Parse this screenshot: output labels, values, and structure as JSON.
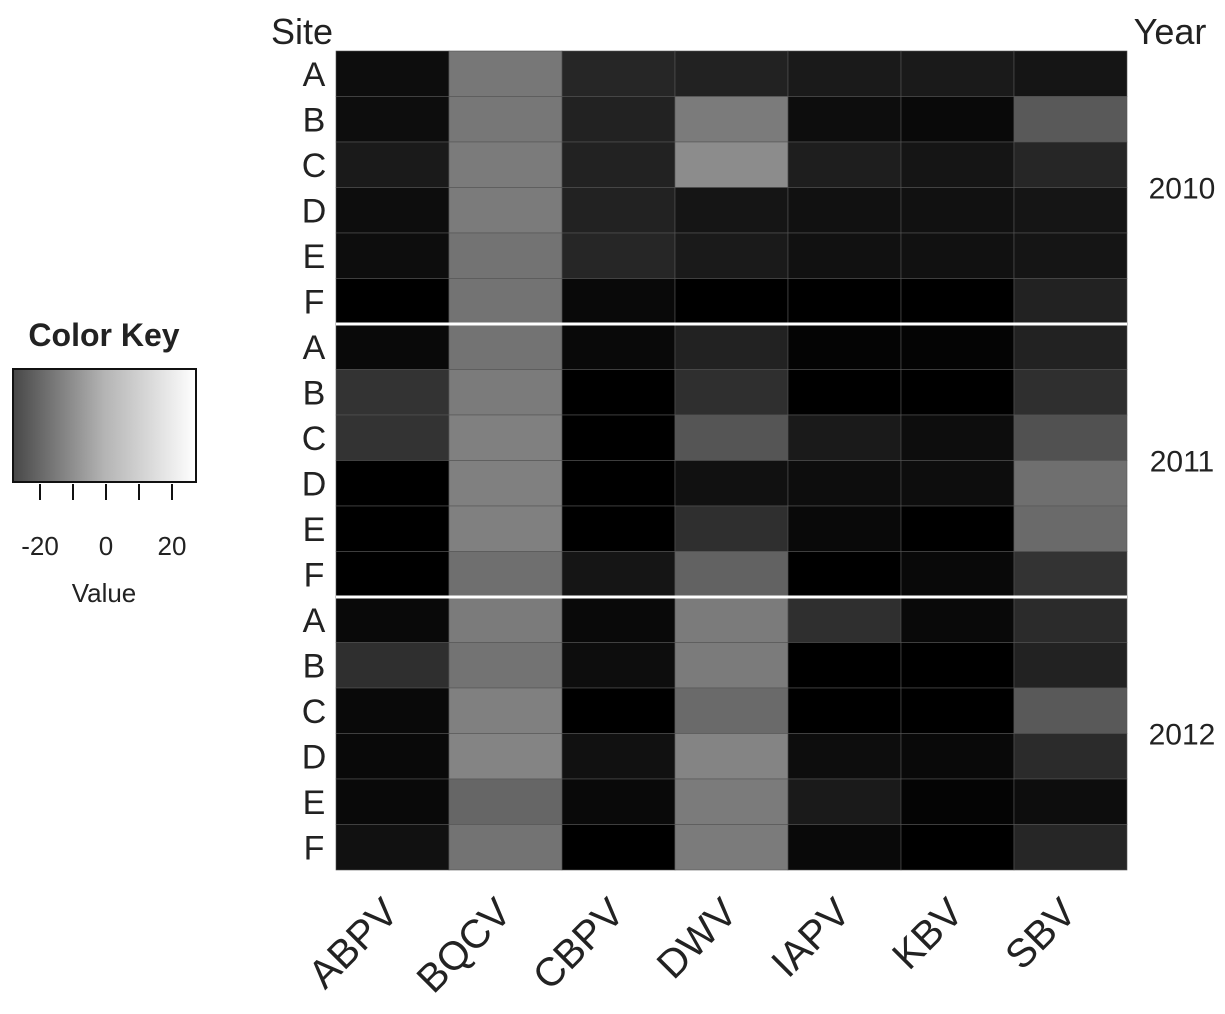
{
  "chart_data": {
    "type": "heatmap",
    "title": "",
    "xlabel": "",
    "ylabel": "Site",
    "right_label": "Year",
    "columns": [
      "ABPV",
      "BQCV",
      "CBPV",
      "DWV",
      "IAPV",
      "KBV",
      "SBV"
    ],
    "years": [
      "2010",
      "2011",
      "2012"
    ],
    "sites": [
      "A",
      "B",
      "C",
      "D",
      "E",
      "F"
    ],
    "value_range": [
      -30,
      30
    ],
    "color_scale": {
      "low": "#000000",
      "high": "#ffffff"
    },
    "rows": [
      {
        "year": "2010",
        "site": "A",
        "values": [
          -27,
          -2,
          -21,
          -22,
          -24,
          -24,
          -25
        ]
      },
      {
        "year": "2010",
        "site": "B",
        "values": [
          -27,
          -2,
          -22,
          -1,
          -27,
          -28,
          -9
        ]
      },
      {
        "year": "2010",
        "site": "C",
        "values": [
          -24,
          -1,
          -22,
          3,
          -23,
          -25,
          -21
        ]
      },
      {
        "year": "2010",
        "site": "D",
        "values": [
          -27,
          -1,
          -22,
          -25,
          -26,
          -26,
          -25
        ]
      },
      {
        "year": "2010",
        "site": "E",
        "values": [
          -27,
          -3,
          -21,
          -24,
          -26,
          -26,
          -25
        ]
      },
      {
        "year": "2010",
        "site": "F",
        "values": [
          -30,
          -3,
          -28,
          -30,
          -30,
          -30,
          -22
        ]
      },
      {
        "year": "2011",
        "site": "A",
        "values": [
          -28,
          -3,
          -28,
          -22,
          -29,
          -29,
          -22
        ]
      },
      {
        "year": "2011",
        "site": "B",
        "values": [
          -18,
          -1,
          -30,
          -19,
          -30,
          -30,
          -19
        ]
      },
      {
        "year": "2011",
        "site": "C",
        "values": [
          -18,
          0,
          -30,
          -10,
          -24,
          -27,
          -11
        ]
      },
      {
        "year": "2011",
        "site": "D",
        "values": [
          -30,
          0,
          -30,
          -26,
          -27,
          -27,
          -4
        ]
      },
      {
        "year": "2011",
        "site": "E",
        "values": [
          -30,
          0,
          -30,
          -19,
          -28,
          -30,
          -5
        ]
      },
      {
        "year": "2011",
        "site": "F",
        "values": [
          -30,
          -4,
          -25,
          -7,
          -30,
          -28,
          -18
        ]
      },
      {
        "year": "2012",
        "site": "A",
        "values": [
          -28,
          -1,
          -28,
          -1,
          -19,
          -28,
          -20
        ]
      },
      {
        "year": "2012",
        "site": "B",
        "values": [
          -19,
          -3,
          -27,
          -1,
          -30,
          -30,
          -22
        ]
      },
      {
        "year": "2012",
        "site": "C",
        "values": [
          -28,
          0,
          -30,
          -5,
          -30,
          -30,
          -9
        ]
      },
      {
        "year": "2012",
        "site": "D",
        "values": [
          -28,
          1,
          -26,
          1,
          -27,
          -28,
          -20
        ]
      },
      {
        "year": "2012",
        "site": "E",
        "values": [
          -28,
          -6,
          -28,
          -1,
          -24,
          -29,
          -27
        ]
      },
      {
        "year": "2012",
        "site": "F",
        "values": [
          -26,
          -3,
          -30,
          -1,
          -28,
          -30,
          -21
        ]
      }
    ],
    "color_key": {
      "title": "Color Key",
      "ticks": [
        "-20",
        "0",
        "20"
      ],
      "label": "Value"
    }
  }
}
